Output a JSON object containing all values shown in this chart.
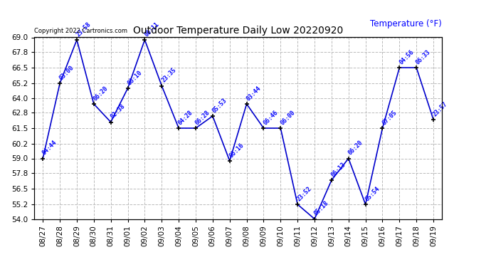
{
  "title": "Outdoor Temperature Daily Low 20220920",
  "ylabel": "Temperature (°F)",
  "background_color": "#ffffff",
  "grid_color": "#bbbbbb",
  "line_color": "#0000cc",
  "marker_color": "#000000",
  "label_color": "#0000ff",
  "copyright_text": "Copyright 2022 Cartronics.com",
  "dates": [
    "08/27",
    "08/28",
    "08/29",
    "08/30",
    "08/31",
    "09/01",
    "09/02",
    "09/03",
    "09/04",
    "09/05",
    "09/06",
    "09/07",
    "09/08",
    "09/09",
    "09/10",
    "09/11",
    "09/12",
    "09/13",
    "09/14",
    "09/15",
    "09/16",
    "09/17",
    "09/18",
    "09/19"
  ],
  "times": [
    "04:44",
    "03:00",
    "23:58",
    "06:20",
    "02:38",
    "06:10",
    "06:11",
    "23:35",
    "04:28",
    "06:28",
    "05:53",
    "06:16",
    "03:44",
    "06:46",
    "06:00",
    "23:52",
    "05:18",
    "06:13",
    "06:20",
    "05:54",
    "07:05",
    "04:56",
    "06:33",
    "23:57"
  ],
  "temps": [
    59.0,
    65.2,
    68.8,
    63.5,
    62.0,
    64.8,
    68.8,
    65.0,
    61.5,
    61.5,
    62.5,
    58.8,
    63.5,
    61.5,
    61.5,
    55.2,
    54.0,
    57.2,
    59.0,
    55.2,
    61.5,
    66.5,
    66.5,
    62.2
  ],
  "ylim": [
    54.0,
    69.0
  ],
  "yticks": [
    54.0,
    55.2,
    56.5,
    57.8,
    59.0,
    60.2,
    61.5,
    62.8,
    64.0,
    65.2,
    66.5,
    67.8,
    69.0
  ]
}
